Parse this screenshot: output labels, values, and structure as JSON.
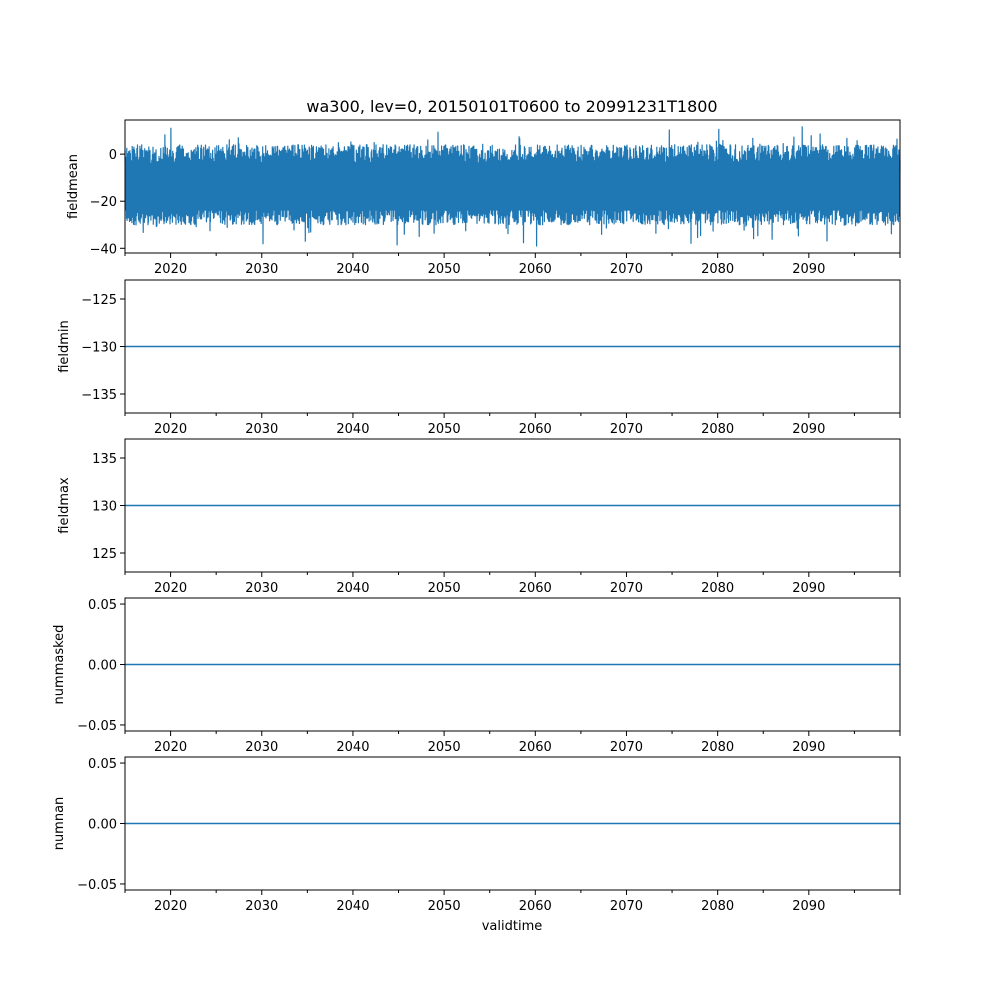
{
  "figure": {
    "title": "wa300, lev=0, 20150101T0600 to 20991231T1800",
    "xlabel": "validtime"
  },
  "colors": {
    "series": "#1f77b4",
    "axes": "#000000",
    "background": "#ffffff"
  },
  "chart_data": [
    {
      "type": "line",
      "ylabel": "fieldmean",
      "x_range": [
        "2015-01-01T06:00",
        "2099-12-31T18:00"
      ],
      "xlim": [
        2015.0,
        2100.0
      ],
      "ylim": [
        -42.0,
        14.5
      ],
      "x_ticks": [
        2020,
        2030,
        2040,
        2050,
        2060,
        2070,
        2080,
        2090
      ],
      "x_tick_labels": [
        "2020",
        "2030",
        "2040",
        "2050",
        "2060",
        "2070",
        "2080",
        "2090"
      ],
      "y_ticks": [
        -40,
        -20,
        0
      ],
      "y_tick_labels": [
        "−40",
        "−20",
        "0"
      ],
      "series": [
        {
          "style": "dense-oscillation",
          "typical_low": -30,
          "typical_high": 4,
          "min": -40,
          "max": 12
        }
      ],
      "grid": false
    },
    {
      "type": "line",
      "ylabel": "fieldmin",
      "xlim": [
        2015.0,
        2100.0
      ],
      "ylim": [
        -137.0,
        -123.0
      ],
      "x_ticks": [
        2020,
        2030,
        2040,
        2050,
        2060,
        2070,
        2080,
        2090
      ],
      "x_tick_labels": [
        "2020",
        "2030",
        "2040",
        "2050",
        "2060",
        "2070",
        "2080",
        "2090"
      ],
      "y_ticks": [
        -125,
        -130,
        -135
      ],
      "y_tick_labels": [
        "−125",
        "−130",
        "−135"
      ],
      "series": [
        {
          "x": [
            2015.0,
            2100.0
          ],
          "values": [
            -130,
            -130
          ]
        }
      ],
      "grid": false
    },
    {
      "type": "line",
      "ylabel": "fieldmax",
      "xlim": [
        2015.0,
        2100.0
      ],
      "ylim": [
        123.0,
        137.0
      ],
      "x_ticks": [
        2020,
        2030,
        2040,
        2050,
        2060,
        2070,
        2080,
        2090
      ],
      "x_tick_labels": [
        "2020",
        "2030",
        "2040",
        "2050",
        "2060",
        "2070",
        "2080",
        "2090"
      ],
      "y_ticks": [
        135,
        130,
        125
      ],
      "y_tick_labels": [
        "135",
        "130",
        "125"
      ],
      "series": [
        {
          "x": [
            2015.0,
            2100.0
          ],
          "values": [
            130,
            130
          ]
        }
      ],
      "grid": false
    },
    {
      "type": "line",
      "ylabel": "nummasked",
      "xlim": [
        2015.0,
        2100.0
      ],
      "ylim": [
        -0.055,
        0.055
      ],
      "x_ticks": [
        2020,
        2030,
        2040,
        2050,
        2060,
        2070,
        2080,
        2090
      ],
      "x_tick_labels": [
        "2020",
        "2030",
        "2040",
        "2050",
        "2060",
        "2070",
        "2080",
        "2090"
      ],
      "y_ticks": [
        0.05,
        0.0,
        -0.05
      ],
      "y_tick_labels": [
        "0.05",
        "0.00",
        "−0.05"
      ],
      "series": [
        {
          "x": [
            2015.0,
            2100.0
          ],
          "values": [
            0,
            0
          ]
        }
      ],
      "grid": false
    },
    {
      "type": "line",
      "ylabel": "numnan",
      "xlim": [
        2015.0,
        2100.0
      ],
      "ylim": [
        -0.055,
        0.055
      ],
      "x_ticks": [
        2020,
        2030,
        2040,
        2050,
        2060,
        2070,
        2080,
        2090
      ],
      "x_tick_labels": [
        "2020",
        "2030",
        "2040",
        "2050",
        "2060",
        "2070",
        "2080",
        "2090"
      ],
      "y_ticks": [
        0.05,
        0.0,
        -0.05
      ],
      "y_tick_labels": [
        "0.05",
        "0.00",
        "−0.05"
      ],
      "series": [
        {
          "x": [
            2015.0,
            2100.0
          ],
          "values": [
            0,
            0
          ]
        }
      ],
      "grid": false
    }
  ]
}
